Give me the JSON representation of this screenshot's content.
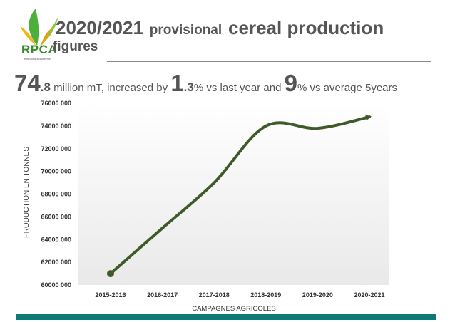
{
  "logo": {
    "text": "RPCA",
    "subtext": "www.food-security.net"
  },
  "title": {
    "year": "2020/2021",
    "word_provisional": "provisional",
    "rest": "cereal production",
    "line2": "figures"
  },
  "headline": {
    "value_int": "74",
    "value_dec": ".8",
    "text1": " million mT, increased by ",
    "pct1_int": "1",
    "pct1_dec": ".3",
    "text2": "% vs last year and ",
    "pct2": "9",
    "text3": "% vs average 5years"
  },
  "colors": {
    "line": "#3d5a28",
    "text": "#555555",
    "bar": "#0e7a77",
    "logo": "#3a8a2e"
  },
  "chart_data": {
    "type": "line",
    "categories": [
      "2015-2016",
      "2016-2017",
      "2017-2018",
      "2018-2019",
      "2019-2020",
      "2020-2021"
    ],
    "values": [
      61000000,
      65000000,
      69000000,
      74000000,
      73800000,
      74800000
    ],
    "xlabel": "CAMPAGNES AGRICOLES",
    "ylabel": "PRODUCTION EN TONNES",
    "ylim": [
      60000000,
      76000000
    ],
    "yticks": [
      60000000,
      62000000,
      64000000,
      66000000,
      68000000,
      70000000,
      72000000,
      74000000,
      76000000
    ],
    "ytick_labels": [
      "60000 000",
      "62000 000",
      "64000 000",
      "66000 000",
      "68000 000",
      "70000 000",
      "72000 000",
      "74000 000",
      "76000 000"
    ],
    "grid": false,
    "legend": "none"
  }
}
